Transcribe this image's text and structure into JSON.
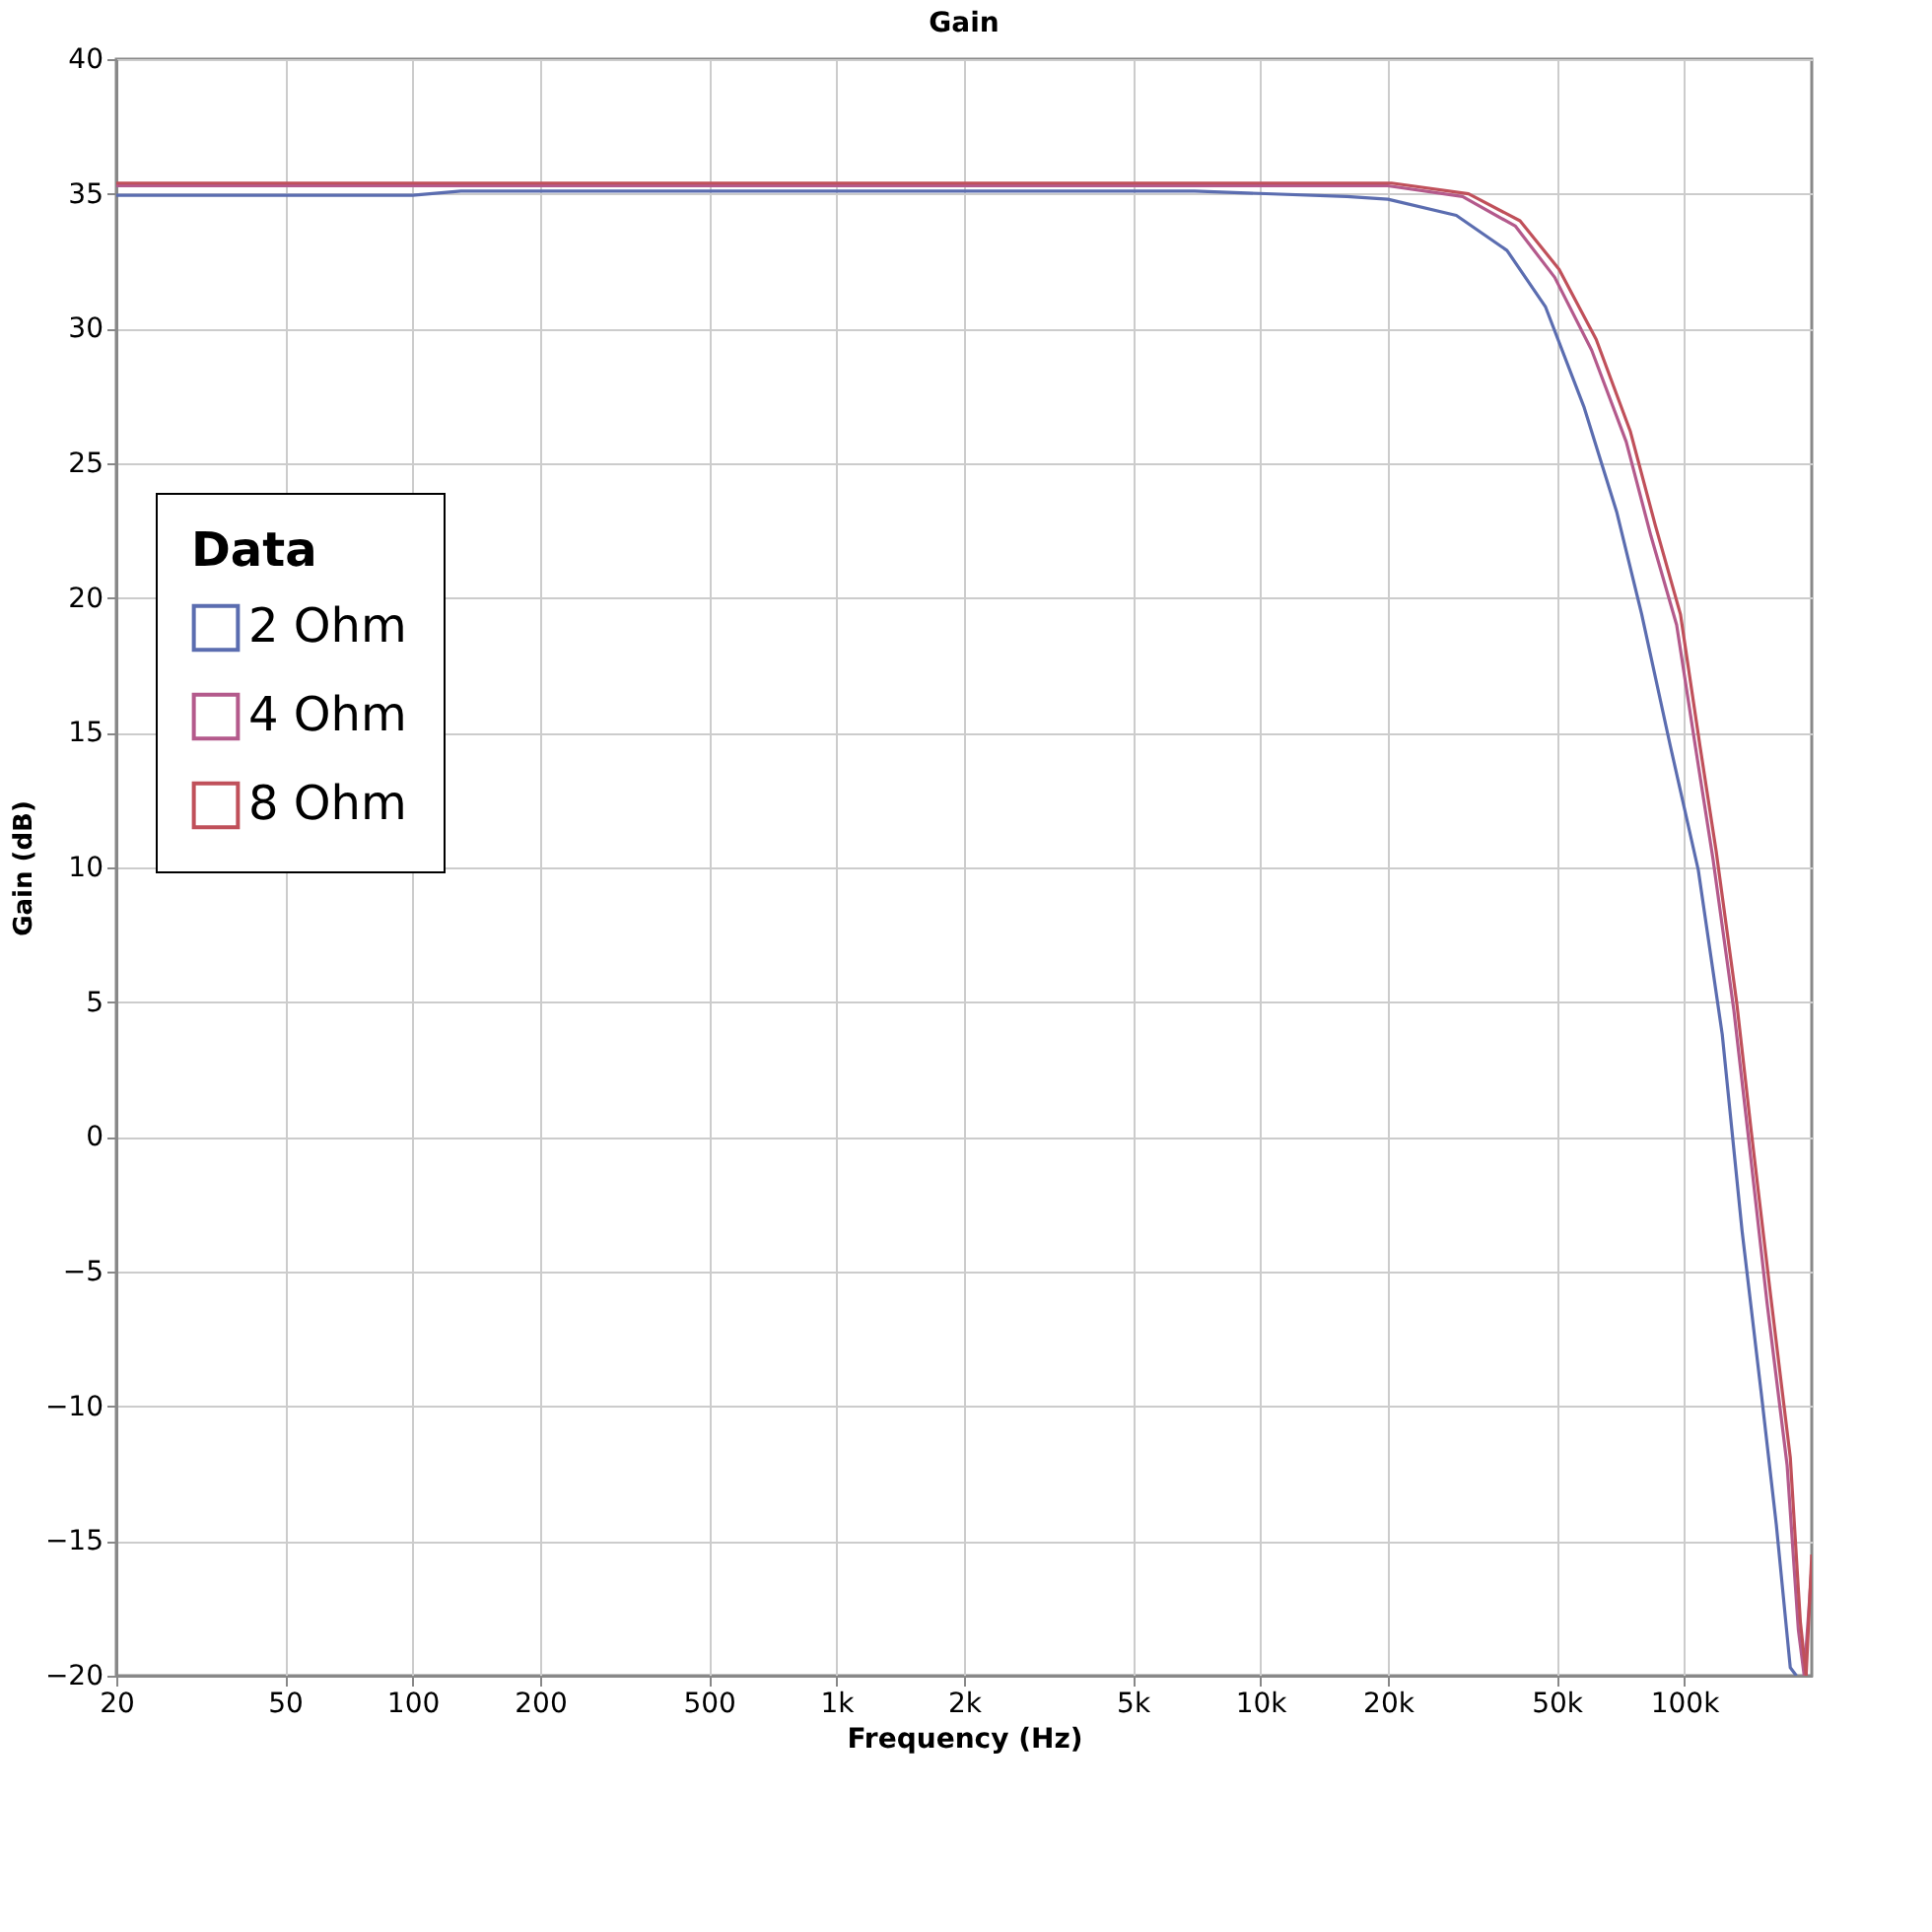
{
  "chart_data": {
    "type": "line",
    "title": "Gain",
    "xlabel": "Frequency (Hz)",
    "ylabel": "Gain (dB)",
    "log": "x",
    "grid": true,
    "legend": "left",
    "legend_title": "Data",
    "line_style": "solid",
    "marker": "none",
    "xlim": [
      20,
      200000
    ],
    "xticks": [
      20,
      50,
      100,
      200,
      500,
      {
        "value": 1000,
        "label": "1k"
      },
      {
        "value": 2000,
        "label": "2k"
      },
      {
        "value": 5000,
        "label": "5k"
      },
      {
        "value": 10000,
        "label": "10k"
      },
      {
        "value": 20000,
        "label": "20k"
      },
      {
        "value": 50000,
        "label": "50k"
      },
      {
        "value": 100000,
        "label": "100k"
      }
    ],
    "ylim": [
      -20,
      40
    ],
    "yticks": [
      -20,
      -15,
      -10,
      -5,
      0,
      5,
      10,
      15,
      20,
      25,
      30,
      35,
      40
    ],
    "series": [
      {
        "name": "2 Ohm",
        "color": "#5b6db0",
        "x": [
          20,
          100,
          130,
          1000,
          7000,
          16000,
          20000,
          29000,
          38200,
          47100,
          58000,
          69300,
          79400,
          92800,
          108000,
          123000,
          137000,
          152000,
          165000,
          178000,
          184000
        ],
        "values": [
          34.95,
          34.95,
          35.1,
          35.1,
          35.1,
          34.9,
          34.8,
          34.2,
          32.9,
          30.8,
          27.1,
          23.2,
          19.4,
          14.5,
          9.9,
          3.8,
          -3.5,
          -9.5,
          -14.4,
          -19.7,
          -20
        ]
      },
      {
        "name": "4 Ohm",
        "color": "#b45a8c",
        "x": [
          20,
          1000,
          10000,
          20000,
          30000,
          40000,
          49500,
          60500,
          73000,
          83500,
          96000,
          107000,
          117000,
          131000,
          142000,
          157000,
          175000,
          186000,
          192000,
          200000
        ],
        "values": [
          35.3,
          35.3,
          35.3,
          35.3,
          34.9,
          33.8,
          31.9,
          29.2,
          25.8,
          22.3,
          19.0,
          14.2,
          10.3,
          4.7,
          -0.1,
          -6.2,
          -12.2,
          -18.3,
          -20,
          -16
        ]
      },
      {
        "name": "8 Ohm",
        "color": "#c0505a",
        "x": [
          20,
          1000,
          10000,
          20400,
          31000,
          41000,
          50700,
          62000,
          74600,
          85500,
          98000,
          109000,
          119000,
          133000,
          144000,
          160000,
          178000,
          188000,
          194000,
          200000
        ],
        "values": [
          35.4,
          35.4,
          35.4,
          35.4,
          35.0,
          34.0,
          32.2,
          29.6,
          26.2,
          22.7,
          19.4,
          14.5,
          10.6,
          5.0,
          0.2,
          -5.9,
          -11.9,
          -18.0,
          -20,
          -15.5
        ]
      }
    ]
  }
}
